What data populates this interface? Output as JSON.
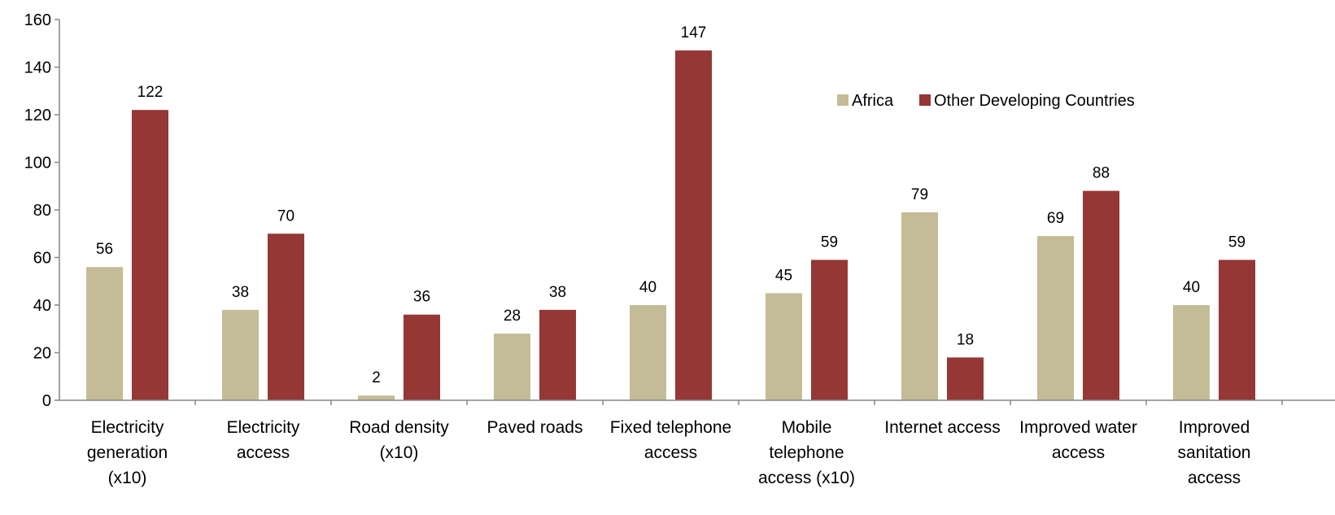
{
  "chart_data": {
    "type": "bar",
    "title": "",
    "xlabel": "",
    "ylabel": "",
    "ylim": [
      0,
      160
    ],
    "yticks": [
      0,
      20,
      40,
      60,
      80,
      100,
      120,
      140,
      160
    ],
    "grid": false,
    "legend_position": "top-right",
    "categories": [
      [
        "Electricity",
        "generation",
        "(x10)"
      ],
      [
        "Electricity",
        "access"
      ],
      [
        "Road density",
        "(x10)"
      ],
      [
        "Paved roads"
      ],
      [
        "Fixed telephone",
        "access"
      ],
      [
        "Mobile",
        "telephone",
        "access (x10)"
      ],
      [
        "Internet access"
      ],
      [
        "Improved water",
        "access"
      ],
      [
        "Improved",
        "sanitation",
        "access"
      ]
    ],
    "series": [
      {
        "name": "Africa",
        "color": "#c4bc96",
        "values": [
          56,
          38,
          2,
          28,
          40,
          45,
          79,
          69,
          40
        ]
      },
      {
        "name": "Other Developing Countries",
        "color": "#953735",
        "values": [
          122,
          70,
          36,
          38,
          147,
          59,
          18,
          88,
          59
        ]
      }
    ]
  }
}
